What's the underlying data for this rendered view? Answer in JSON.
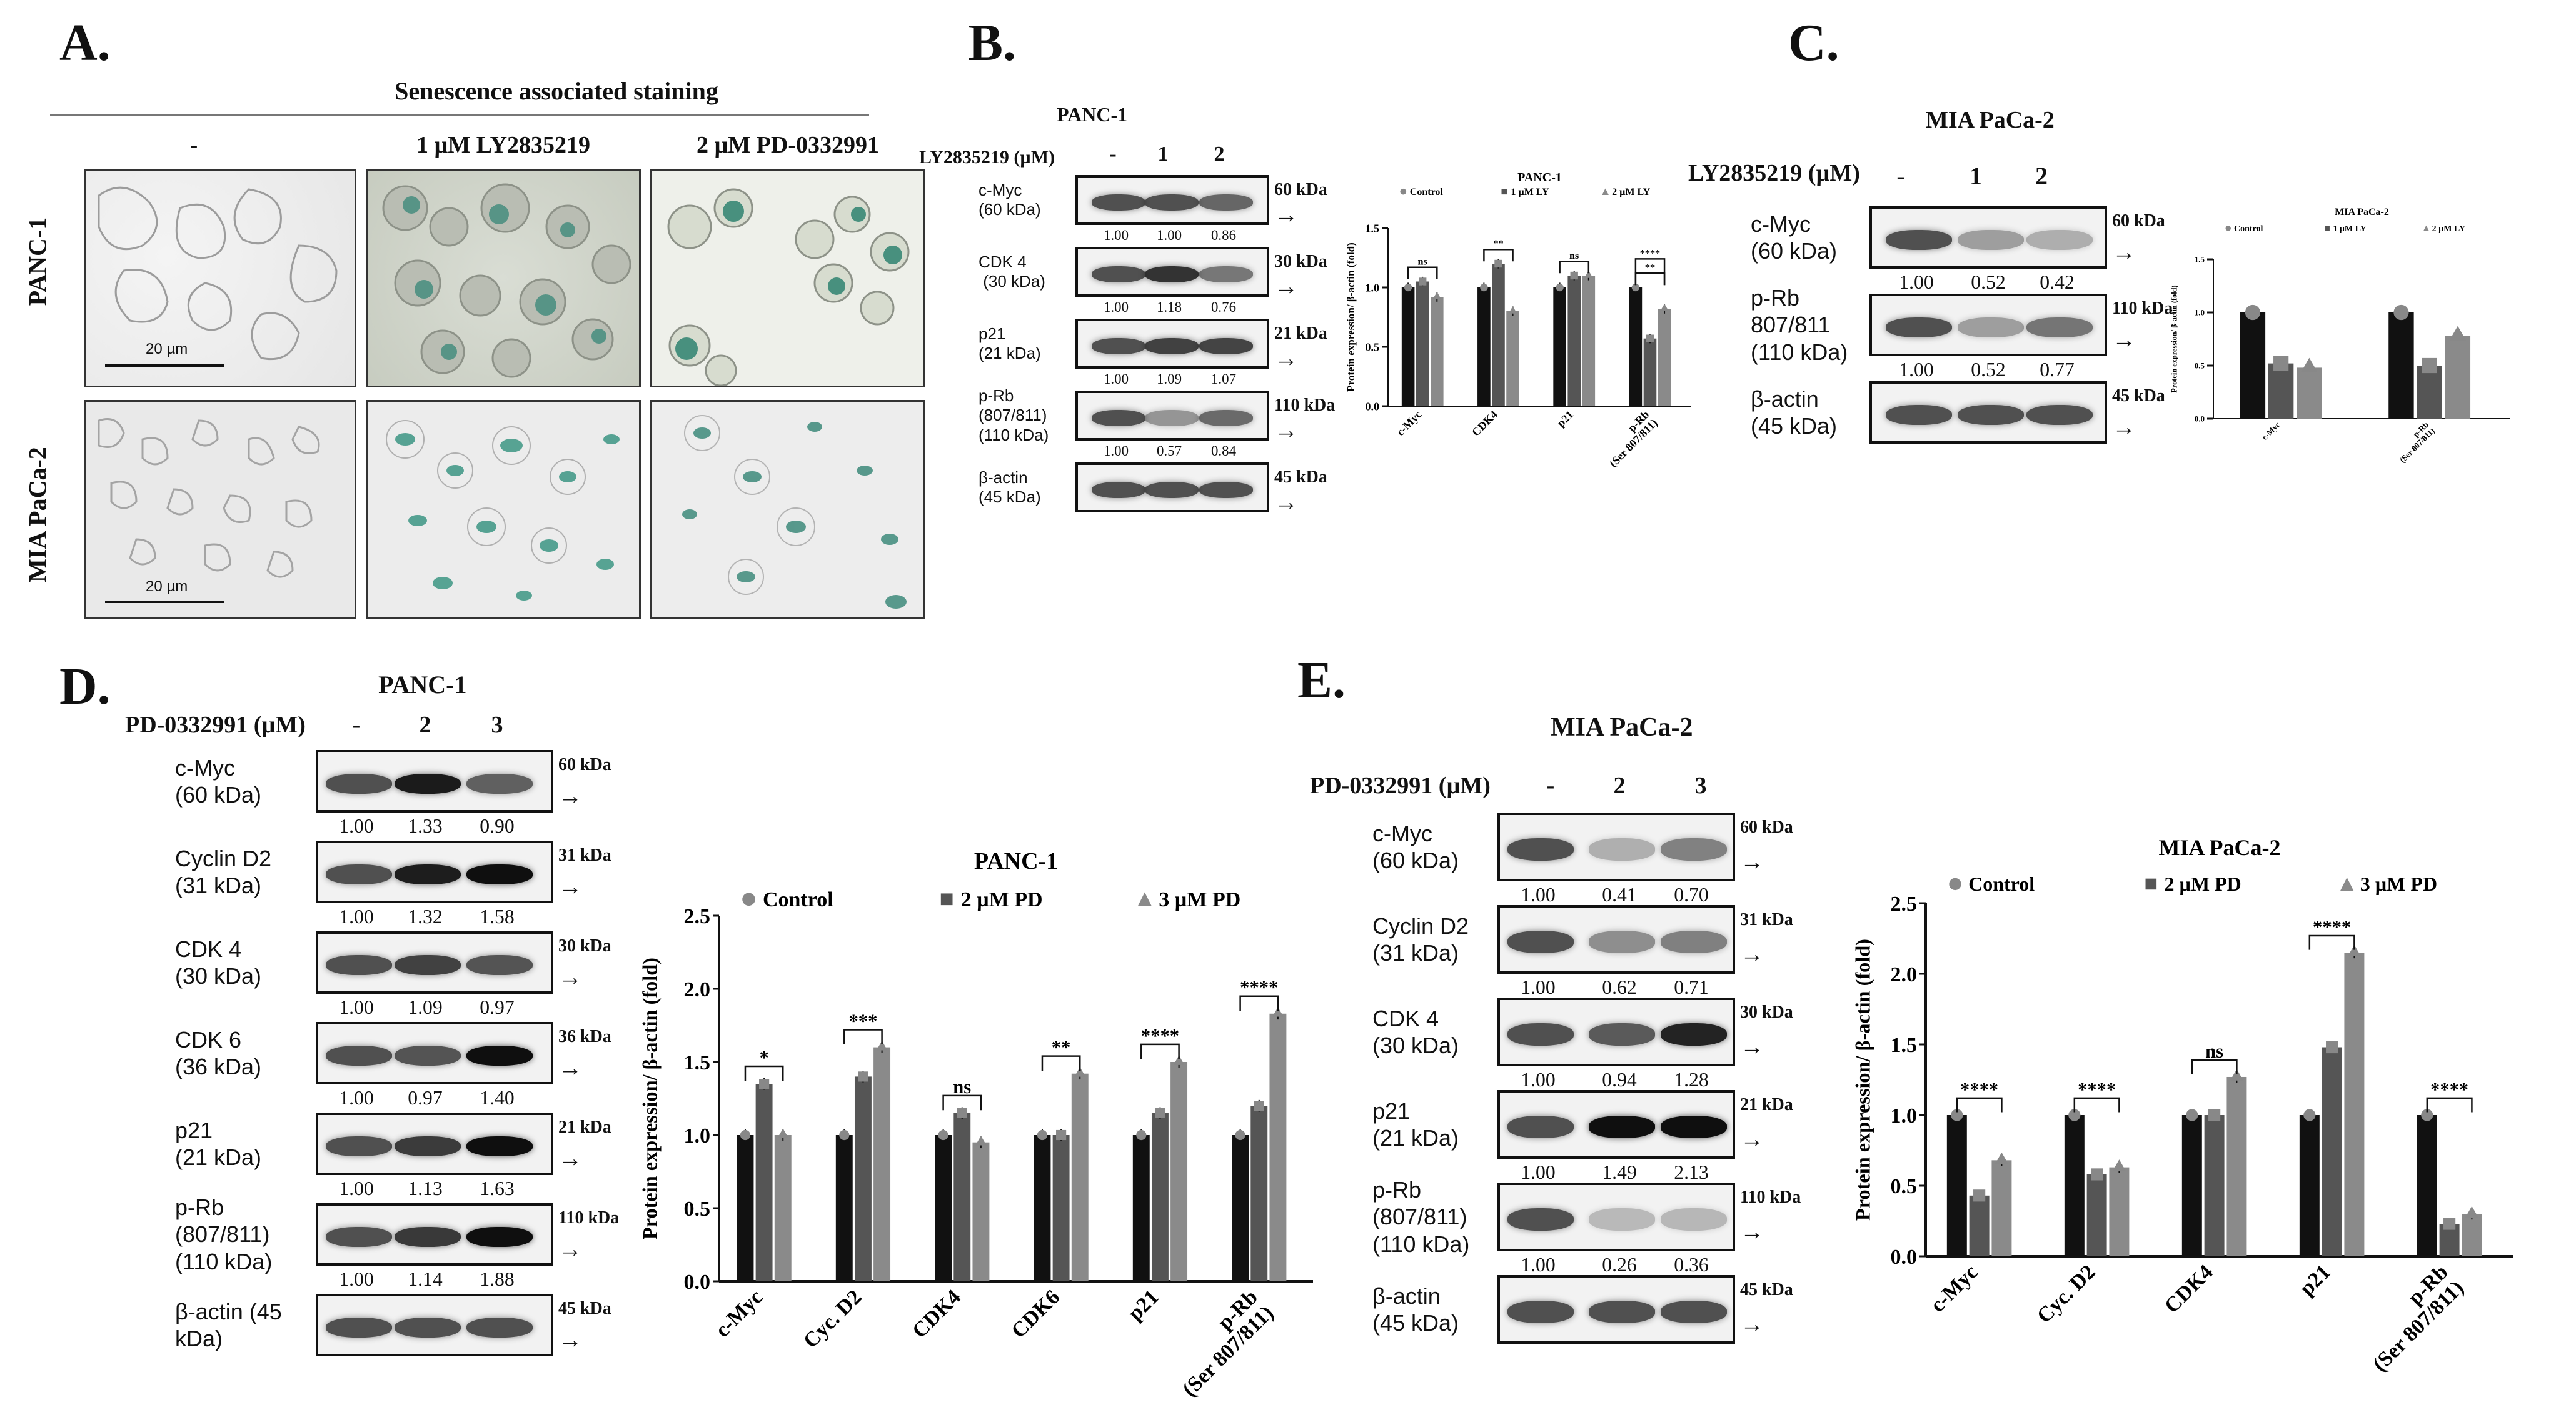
{
  "panels": {
    "A": {
      "letter": "A.",
      "title": "Senescence associated  staining",
      "columns": [
        "-",
        "1 µM LY2835219",
        "2 µM PD-0332991"
      ],
      "rows": [
        "PANC-1",
        "MIA  PaCa-2"
      ],
      "scalebar": "20 µm"
    },
    "B": {
      "letter": "B.",
      "cell_line": "PANC-1",
      "treatment": "LY2835219 (µM)",
      "lanes": [
        "-",
        "1",
        "2"
      ],
      "blots": [
        {
          "name": "c-Myc\n(60 kDa)",
          "kda": "60 kDa",
          "quant": [
            "1.00",
            "1.00",
            "0.86"
          ]
        },
        {
          "name": "CDK 4\n (30 kDa)",
          "kda": "30 kDa",
          "quant": [
            "1.00",
            "1.18",
            "0.76"
          ]
        },
        {
          "name": "p21\n(21 kDa)",
          "kda": "21 kDa",
          "quant": [
            "1.00",
            "1.09",
            "1.07"
          ]
        },
        {
          "name": "p-Rb\n(807/811)\n(110 kDa)",
          "kda": "110 kDa",
          "quant": [
            "1.00",
            "0.57",
            "0.84"
          ]
        },
        {
          "name": "β-actin\n(45 kDa)",
          "kda": "45 kDa",
          "quant": []
        }
      ]
    },
    "C": {
      "letter": "C.",
      "cell_line": "MIA PaCa-2",
      "treatment": "LY2835219 (µM)",
      "lanes": [
        "-",
        "1",
        "2"
      ],
      "blots": [
        {
          "name": "c-Myc\n(60 kDa)",
          "kda": "60 kDa",
          "quant": [
            "1.00",
            "0.52",
            "0.42"
          ]
        },
        {
          "name": "p-Rb\n807/811\n(110 kDa)",
          "kda": "110 kDa",
          "quant": [
            "1.00",
            "0.52",
            "0.77"
          ]
        },
        {
          "name": "β-actin\n(45 kDa)",
          "kda": "45 kDa",
          "quant": []
        }
      ]
    },
    "D": {
      "letter": "D.",
      "cell_line": "PANC-1",
      "treatment": "PD-0332991 (µM)",
      "lanes": [
        "-",
        "2",
        "3"
      ],
      "blots": [
        {
          "name": "c-Myc\n(60 kDa)",
          "kda": "60 kDa",
          "quant": [
            "1.00",
            "1.33",
            "0.90"
          ]
        },
        {
          "name": "Cyclin D2\n(31 kDa)",
          "kda": "31 kDa",
          "quant": [
            "1.00",
            "1.32",
            "1.58"
          ]
        },
        {
          "name": "CDK 4\n(30 kDa)",
          "kda": "30 kDa",
          "quant": [
            "1.00",
            "1.09",
            "0.97"
          ]
        },
        {
          "name": "CDK 6\n(36 kDa)",
          "kda": "36 kDa",
          "quant": [
            "1.00",
            "0.97",
            "1.40"
          ]
        },
        {
          "name": "p21\n(21 kDa)",
          "kda": "21 kDa",
          "quant": [
            "1.00",
            "1.13",
            "1.63"
          ]
        },
        {
          "name": "p-Rb\n(807/811)\n(110 kDa)",
          "kda": "110 kDa",
          "quant": [
            "1.00",
            "1.14",
            "1.88"
          ]
        },
        {
          "name": "β-actin (45\nkDa)",
          "kda": "45 kDa",
          "quant": []
        }
      ]
    },
    "E": {
      "letter": "E.",
      "cell_line": "MIA PaCa-2",
      "treatment": "PD-0332991 (µM)",
      "lanes": [
        "-",
        "2",
        "3"
      ],
      "blots": [
        {
          "name": "c-Myc\n(60 kDa)",
          "kda": "60 kDa",
          "quant": [
            "1.00",
            "0.41",
            "0.70"
          ]
        },
        {
          "name": "Cyclin D2\n(31 kDa)",
          "kda": "31 kDa",
          "quant": [
            "1.00",
            "0.62",
            "0.71"
          ]
        },
        {
          "name": "CDK 4\n(30 kDa)",
          "kda": "30 kDa",
          "quant": [
            "1.00",
            "0.94",
            "1.28"
          ]
        },
        {
          "name": "p21\n(21 kDa)",
          "kda": "21 kDa",
          "quant": [
            "1.00",
            "1.49",
            "2.13"
          ]
        },
        {
          "name": "p-Rb\n(807/811)\n(110 kDa)",
          "kda": "110 kDa",
          "quant": [
            "1.00",
            "0.26",
            "0.36"
          ]
        },
        {
          "name": "β-actin\n(45 kDa)",
          "kda": "45 kDa",
          "quant": []
        }
      ]
    }
  },
  "colors": {
    "control": "#111111",
    "treat1": "#555555",
    "treat2": "#8a8a8a",
    "marker": "#888888"
  },
  "chart_data": [
    {
      "id": "B",
      "type": "bar",
      "title": "PANC-1",
      "ylabel": "Protein expression/ β-actin (fold)",
      "categories": [
        "c-Myc",
        "CDK4",
        "p21",
        "p-Rb\n(Ser 807/811)"
      ],
      "ylim": [
        0,
        1.5
      ],
      "yticks": [
        0.0,
        0.5,
        1.0,
        1.5
      ],
      "series": [
        {
          "name": "Control",
          "values": [
            1.0,
            1.0,
            1.0,
            1.0
          ]
        },
        {
          "name": "1 µM LY",
          "values": [
            1.05,
            1.2,
            1.1,
            0.57
          ]
        },
        {
          "name": "2 µM LY",
          "values": [
            0.92,
            0.8,
            1.1,
            0.82
          ]
        }
      ],
      "significance": [
        {
          "category": 0,
          "label": "ns"
        },
        {
          "category": 1,
          "label": "**"
        },
        {
          "category": 2,
          "label": "ns"
        },
        {
          "category": 3,
          "label": "**"
        },
        {
          "category": 3,
          "label": "****"
        }
      ]
    },
    {
      "id": "C",
      "type": "bar",
      "title": "MIA PaCa-2",
      "ylabel": "Protein expression/ β-actin (fold)",
      "categories": [
        "c-Myc",
        "p-Rb\n(Ser 807/811)"
      ],
      "ylim": [
        0,
        1.5
      ],
      "yticks": [
        0.0,
        0.5,
        1.0,
        1.5
      ],
      "series": [
        {
          "name": "Control",
          "values": [
            1.0,
            1.0
          ]
        },
        {
          "name": "1 µM LY",
          "values": [
            0.52,
            0.5
          ]
        },
        {
          "name": "2 µM LY",
          "values": [
            0.48,
            0.78
          ]
        }
      ],
      "significance": []
    },
    {
      "id": "D",
      "type": "bar",
      "title": "PANC-1",
      "ylabel": "Protein expression/ β-actin (fold)",
      "categories": [
        "c-Myc",
        "Cyc. D2",
        "CDK4",
        "CDK6",
        "p21",
        "p-Rb\n(Ser 807/811)"
      ],
      "ylim": [
        0,
        2.5
      ],
      "yticks": [
        0.0,
        0.5,
        1.0,
        1.5,
        2.0,
        2.5
      ],
      "series": [
        {
          "name": "Control",
          "values": [
            1.0,
            1.0,
            1.0,
            1.0,
            1.0,
            1.0
          ]
        },
        {
          "name": "2 µM PD",
          "values": [
            1.35,
            1.4,
            1.15,
            1.0,
            1.15,
            1.2
          ]
        },
        {
          "name": "3 µM PD",
          "values": [
            1.0,
            1.6,
            0.95,
            1.42,
            1.5,
            1.83
          ]
        }
      ],
      "significance": [
        {
          "category": 0,
          "label": "*"
        },
        {
          "category": 1,
          "label": "***"
        },
        {
          "category": 2,
          "label": "ns"
        },
        {
          "category": 3,
          "label": "**"
        },
        {
          "category": 4,
          "label": "****"
        },
        {
          "category": 5,
          "label": "****"
        }
      ]
    },
    {
      "id": "E",
      "type": "bar",
      "title": "MIA PaCa-2",
      "ylabel": "Protein expression/ β-actin (fold)",
      "categories": [
        "c-Myc",
        "Cyc. D2",
        "CDK4",
        "p21",
        "p-Rb\n(Ser 807/811)"
      ],
      "ylim": [
        0,
        2.5
      ],
      "yticks": [
        0.0,
        0.5,
        1.0,
        1.5,
        2.0,
        2.5
      ],
      "series": [
        {
          "name": "Control",
          "values": [
            1.0,
            1.0,
            1.0,
            1.0,
            1.0
          ]
        },
        {
          "name": "2 µM PD",
          "values": [
            0.43,
            0.58,
            1.0,
            1.48,
            0.23
          ]
        },
        {
          "name": "3 µM PD",
          "values": [
            0.68,
            0.63,
            1.27,
            2.15,
            0.3
          ]
        }
      ],
      "significance": [
        {
          "category": 0,
          "label": "****"
        },
        {
          "category": 1,
          "label": "****"
        },
        {
          "category": 2,
          "label": "ns"
        },
        {
          "category": 3,
          "label": "****"
        },
        {
          "category": 4,
          "label": "****"
        }
      ]
    }
  ]
}
